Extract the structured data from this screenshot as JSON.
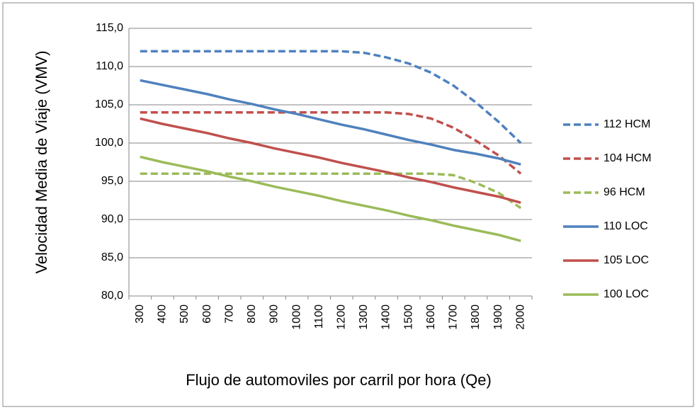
{
  "chart_data": {
    "type": "line",
    "x_label": "Flujo de automoviles por carril por hora (Qe)",
    "y_label": "Velocidad Media de Viaje (VMV)",
    "categories": [
      "300",
      "400",
      "500",
      "600",
      "700",
      "800",
      "900",
      "1000",
      "1100",
      "1200",
      "1300",
      "1400",
      "1500",
      "1600",
      "1700",
      "1800",
      "1900",
      "2000"
    ],
    "series": [
      {
        "name": "112 HCM",
        "color": "#4f81bd",
        "dash": true,
        "values": [
          112.0,
          112.0,
          112.0,
          112.0,
          112.0,
          112.0,
          112.0,
          112.0,
          112.0,
          112.0,
          111.8,
          111.2,
          110.4,
          109.2,
          107.5,
          105.3,
          102.8,
          100.0
        ]
      },
      {
        "name": "104 HCM",
        "color": "#c0504d",
        "dash": true,
        "values": [
          104.0,
          104.0,
          104.0,
          104.0,
          104.0,
          104.0,
          104.0,
          104.0,
          104.0,
          104.0,
          104.0,
          104.0,
          103.8,
          103.2,
          102.0,
          100.3,
          98.4,
          96.0
        ]
      },
      {
        "name": "96 HCM",
        "color": "#9bbb59",
        "dash": true,
        "values": [
          96.0,
          96.0,
          96.0,
          96.0,
          96.0,
          96.0,
          96.0,
          96.0,
          96.0,
          96.0,
          96.0,
          96.0,
          96.0,
          96.0,
          95.8,
          94.8,
          93.5,
          91.5
        ]
      },
      {
        "name": "110 LOC",
        "color": "#4f81bd",
        "dash": false,
        "values": [
          108.2,
          107.6,
          107.0,
          106.4,
          105.7,
          105.1,
          104.4,
          103.8,
          103.1,
          102.4,
          101.8,
          101.1,
          100.4,
          99.8,
          99.1,
          98.6,
          98.0,
          97.2
        ]
      },
      {
        "name": "105 LOC",
        "color": "#c0504d",
        "dash": false,
        "values": [
          103.2,
          102.5,
          101.9,
          101.3,
          100.6,
          100.0,
          99.3,
          98.7,
          98.1,
          97.4,
          96.8,
          96.2,
          95.5,
          94.9,
          94.2,
          93.6,
          93.0,
          92.2
        ]
      },
      {
        "name": "100 LOC",
        "color": "#9bbb59",
        "dash": false,
        "values": [
          98.2,
          97.5,
          96.9,
          96.3,
          95.6,
          95.0,
          94.3,
          93.7,
          93.1,
          92.4,
          91.8,
          91.2,
          90.5,
          89.9,
          89.2,
          88.6,
          88.0,
          87.2
        ]
      }
    ],
    "ylim": [
      80,
      115
    ],
    "yticks": [
      {
        "value": 80,
        "label": "80,0"
      },
      {
        "value": 85,
        "label": "85,0"
      },
      {
        "value": 90,
        "label": "90,0"
      },
      {
        "value": 95,
        "label": "95,0"
      },
      {
        "value": 100,
        "label": "100,0"
      },
      {
        "value": 105,
        "label": "105,0"
      },
      {
        "value": 110,
        "label": "110,0"
      },
      {
        "value": 115,
        "label": "115,0"
      }
    ],
    "grid": true,
    "legend": "right"
  }
}
